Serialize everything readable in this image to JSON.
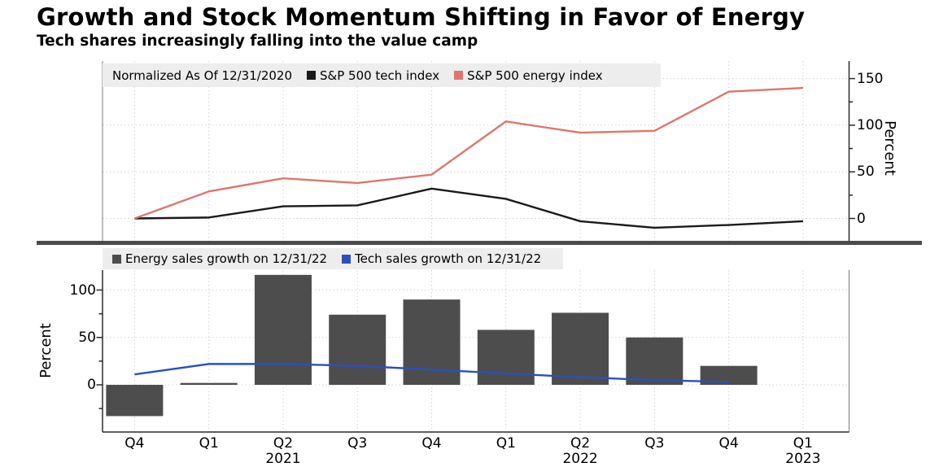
{
  "header": {
    "title": "Growth and Stock Momentum Shifting in Favor of Energy",
    "subtitle": "Tech shares increasingly falling into the value camp"
  },
  "chart_data": [
    {
      "type": "line",
      "panel": "top",
      "legend_note": "Normalized As Of 12/31/2020",
      "categories": [
        "Q4 2020",
        "Q1 2021",
        "Q2 2021",
        "Q3 2021",
        "Q4 2021",
        "Q1 2022",
        "Q2 2022",
        "Q3 2022",
        "Q4 2022",
        "Q1 2023"
      ],
      "series": [
        {
          "name": "S&P 500 tech index",
          "color": "#1a1a1a",
          "values": [
            0,
            1,
            13,
            14,
            32,
            21,
            -3,
            -10,
            -7,
            -3
          ]
        },
        {
          "name": "S&P 500 energy index",
          "color": "#dd766d",
          "values": [
            0,
            29,
            43,
            38,
            47,
            104,
            92,
            94,
            136,
            140
          ]
        }
      ],
      "ylabel": "Percent",
      "y_ticks": [
        0,
        50,
        100,
        150
      ],
      "y_minor_ticks": [
        25,
        75,
        125
      ],
      "ylim": [
        -25,
        169
      ],
      "yaxis_side": "right",
      "grid": true,
      "legend_position": "top-left"
    },
    {
      "type": "bar",
      "panel": "bottom",
      "categories": [
        "Q4 2020",
        "Q1 2021",
        "Q2 2021",
        "Q3 2021",
        "Q4 2021",
        "Q1 2022",
        "Q2 2022",
        "Q3 2022",
        "Q4 2022",
        "Q1 2023"
      ],
      "series": [
        {
          "name": "Energy sales growth on 12/31/22",
          "chart_type": "bar",
          "color": "#4d4d4d",
          "values": [
            -33,
            2,
            116,
            74,
            90,
            58,
            76,
            50,
            20,
            null
          ]
        },
        {
          "name": "Tech sales growth on 12/31/22",
          "chart_type": "line",
          "color": "#2b4fc0",
          "values": [
            11,
            22,
            22,
            20,
            16,
            12,
            8,
            5,
            3,
            null
          ]
        }
      ],
      "ylabel": "Percent",
      "y_ticks": [
        0,
        50,
        100
      ],
      "y_minor_ticks": [
        -25,
        25,
        75
      ],
      "ylim": [
        -50,
        124
      ],
      "yaxis_side": "left",
      "grid": true,
      "legend_position": "top-left"
    }
  ],
  "x_axis": {
    "quarters": [
      "Q4",
      "Q1",
      "Q2",
      "Q3",
      "Q4",
      "Q1",
      "Q2",
      "Q3",
      "Q4",
      "Q1"
    ],
    "years": [
      {
        "label": "2021",
        "index": 2
      },
      {
        "label": "2022",
        "index": 6
      },
      {
        "label": "2023",
        "index": 9
      }
    ]
  }
}
